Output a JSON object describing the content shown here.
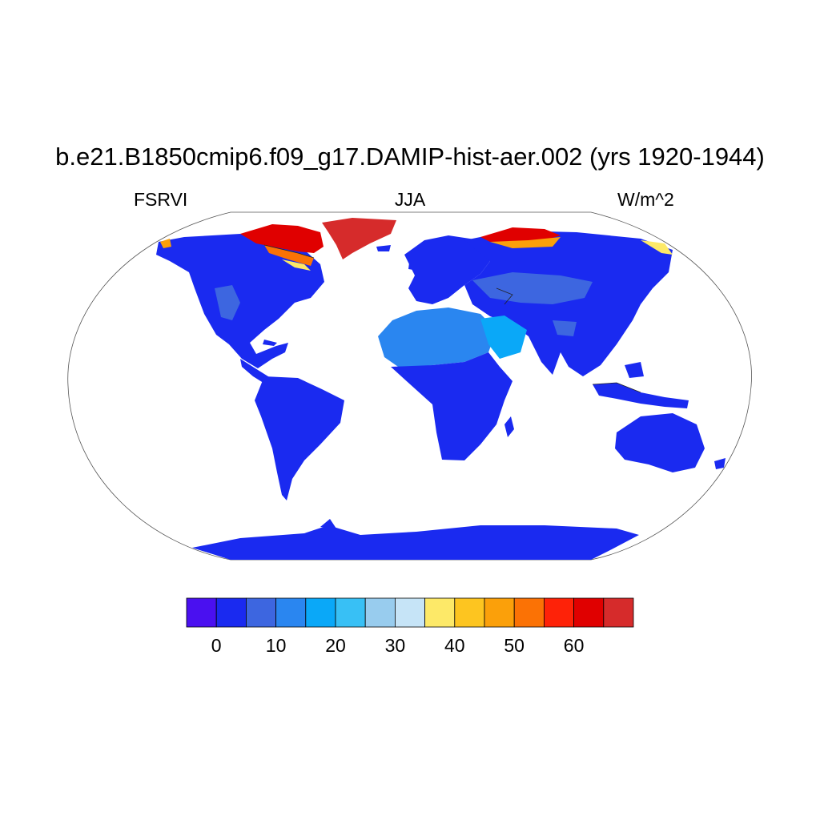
{
  "figure": {
    "title": "b.e21.B1850cmip6.f09_g17.DAMIP-hist-aer.002 (yrs 1920-1944)",
    "left_label": "FSRVI",
    "center_label": "JJA",
    "right_label": "W/m^2"
  },
  "map": {
    "projection": "Robinson",
    "fill_color_land_main": "#1a2af0",
    "fill_color_arid": "#3a7fe8",
    "fill_color_arctic_high": "#d62b2b",
    "ocean_color": "#ffffff",
    "regions": [
      {
        "name": "North America",
        "level": "0-5"
      },
      {
        "name": "South America",
        "level": "0-5"
      },
      {
        "name": "Europe",
        "level": "0-5"
      },
      {
        "name": "Africa",
        "level": "0-5"
      },
      {
        "name": "Sahara",
        "level": "15-20"
      },
      {
        "name": "Arabia",
        "level": "20-25"
      },
      {
        "name": "Asia",
        "level": "0-5"
      },
      {
        "name": "Tibet",
        "level": "10-15"
      },
      {
        "name": "Australia",
        "level": "0-5"
      },
      {
        "name": "Antarctica",
        "level": "0-5"
      },
      {
        "name": "Greenland",
        "level": ">65"
      },
      {
        "name": "Canadian Arctic",
        "level": "40-65"
      },
      {
        "name": "Siberian Arctic",
        "level": "40-65"
      }
    ]
  },
  "colorbar": {
    "colors": [
      "#4a10f0",
      "#1a2af0",
      "#3d66e0",
      "#2a86f0",
      "#0aa8f8",
      "#38c0f5",
      "#98ccee",
      "#c6e4f7",
      "#fde968",
      "#fdc520",
      "#fba00a",
      "#fb7205",
      "#fe2208",
      "#e00000",
      "#d62b2b"
    ],
    "tick_labels": [
      "0",
      "10",
      "20",
      "30",
      "40",
      "50",
      "60"
    ]
  }
}
